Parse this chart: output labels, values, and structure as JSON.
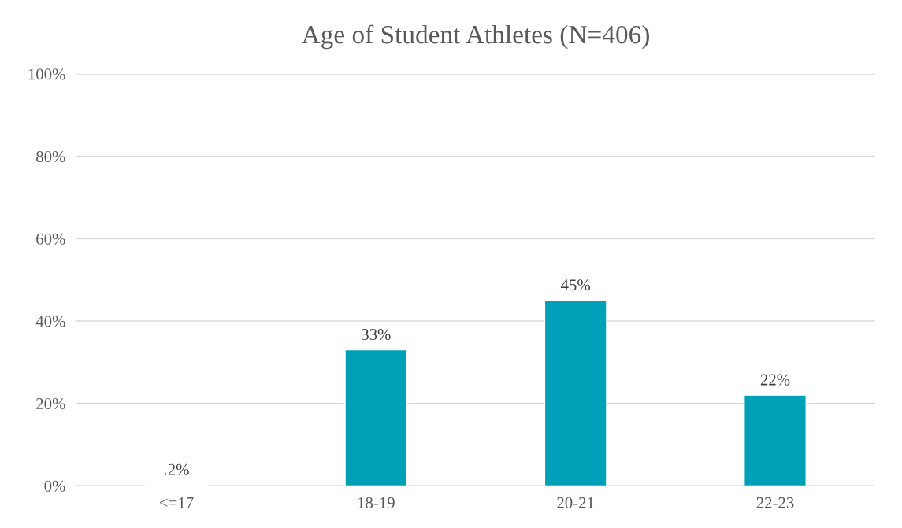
{
  "chart_data": {
    "type": "bar",
    "title": "Age of Student Athletes (N=406)",
    "categories": [
      "<=17",
      "18-19",
      "20-21",
      "22-23"
    ],
    "values": [
      0.2,
      33,
      45,
      22
    ],
    "value_labels": [
      ".2%",
      "33%",
      "45%",
      "22%"
    ],
    "color": "#00a0b8",
    "ylim": [
      0,
      100
    ],
    "yticks": [
      {
        "value": 0,
        "label": "0%"
      },
      {
        "value": 20,
        "label": "20%"
      },
      {
        "value": 40,
        "label": "40%"
      },
      {
        "value": 60,
        "label": "60%"
      },
      {
        "value": 80,
        "label": "80%"
      },
      {
        "value": 100,
        "label": "100%"
      }
    ],
    "grid": "y"
  }
}
